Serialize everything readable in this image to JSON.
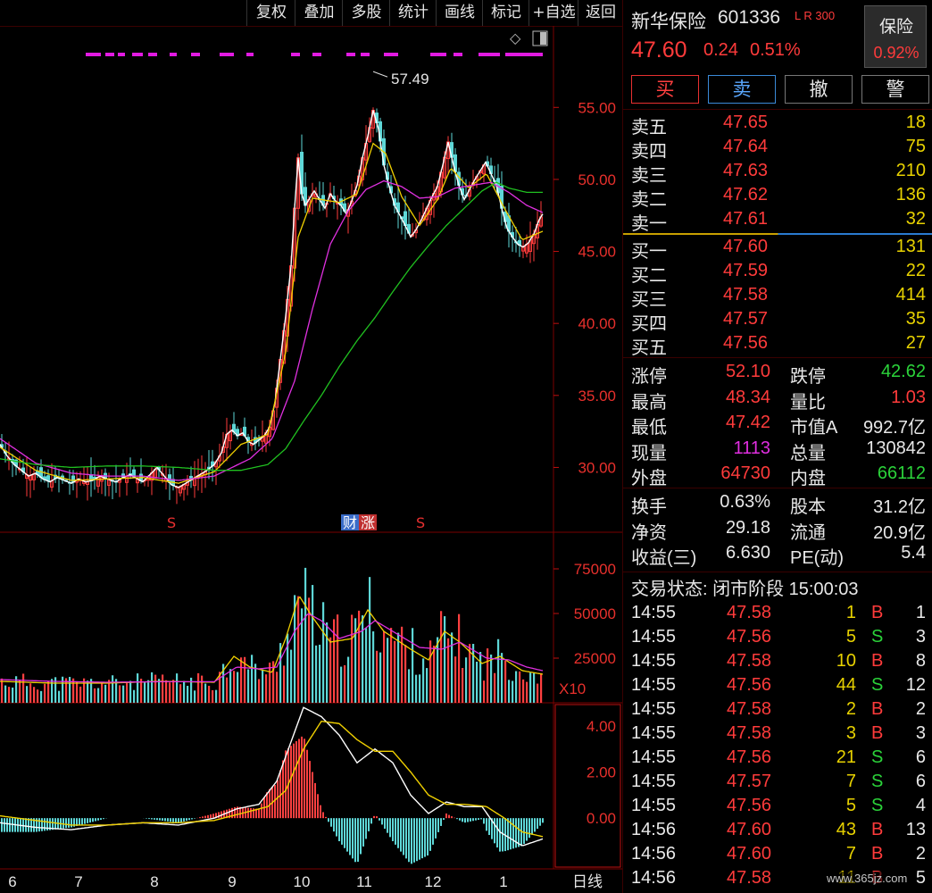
{
  "toolbar": {
    "buttons": [
      "复权",
      "叠加",
      "多股",
      "统计",
      "画线",
      "标记",
      "+自选",
      "返回"
    ]
  },
  "stock": {
    "name": "新华保险",
    "code": "601336",
    "tags": "L R 300",
    "price": "47.60",
    "change": "0.24",
    "change_pct": "0.51%",
    "sector": "保险",
    "sector_pct": "0.92%"
  },
  "actions": [
    "买",
    "卖",
    "撤",
    "警"
  ],
  "asks": [
    {
      "label": "卖五",
      "price": "47.65",
      "vol": "18"
    },
    {
      "label": "卖四",
      "price": "47.64",
      "vol": "75"
    },
    {
      "label": "卖三",
      "price": "47.63",
      "vol": "210"
    },
    {
      "label": "卖二",
      "price": "47.62",
      "vol": "136"
    },
    {
      "label": "卖一",
      "price": "47.61",
      "vol": "32"
    }
  ],
  "bids": [
    {
      "label": "买一",
      "price": "47.60",
      "vol": "131"
    },
    {
      "label": "买二",
      "price": "47.59",
      "vol": "22"
    },
    {
      "label": "买三",
      "price": "47.58",
      "vol": "414"
    },
    {
      "label": "买四",
      "price": "47.57",
      "vol": "35"
    },
    {
      "label": "买五",
      "price": "47.56",
      "vol": "27"
    }
  ],
  "stats": [
    {
      "l1": "涨停",
      "v1": "52.10",
      "c1": "red",
      "l2": "跌停",
      "v2": "42.62",
      "c2": "green"
    },
    {
      "l1": "最高",
      "v1": "48.34",
      "c1": "red",
      "l2": "量比",
      "v2": "1.03",
      "c2": "red"
    },
    {
      "l1": "最低",
      "v1": "47.42",
      "c1": "red",
      "l2": "市值A",
      "v2": "992.7亿",
      "c2": "white"
    },
    {
      "l1": "现量",
      "v1": "1113",
      "c1": "magenta",
      "l2": "总量",
      "v2": "130842",
      "c2": "white"
    },
    {
      "l1": "外盘",
      "v1": "64730",
      "c1": "red",
      "l2": "内盘",
      "v2": "66112",
      "c2": "green"
    }
  ],
  "fundamentals": [
    {
      "l1": "换手",
      "v1": "0.63%",
      "l2": "股本",
      "v2": "31.2亿"
    },
    {
      "l1": "净资",
      "v1": "29.18",
      "l2": "流通",
      "v2": "20.9亿"
    },
    {
      "l1": "收益(三)",
      "v1": "6.630",
      "l2": "PE(动)",
      "v2": "5.4"
    }
  ],
  "trade_status": "交易状态: 闭市阶段 15:00:03",
  "ticks": [
    {
      "t": "14:55",
      "p": "47.58",
      "v": "1",
      "s": "B",
      "n": "1"
    },
    {
      "t": "14:55",
      "p": "47.56",
      "v": "5",
      "s": "S",
      "n": "3"
    },
    {
      "t": "14:55",
      "p": "47.58",
      "v": "10",
      "s": "B",
      "n": "8"
    },
    {
      "t": "14:55",
      "p": "47.56",
      "v": "44",
      "s": "S",
      "n": "12"
    },
    {
      "t": "14:55",
      "p": "47.58",
      "v": "2",
      "s": "B",
      "n": "2"
    },
    {
      "t": "14:55",
      "p": "47.58",
      "v": "3",
      "s": "B",
      "n": "3"
    },
    {
      "t": "14:55",
      "p": "47.56",
      "v": "21",
      "s": "S",
      "n": "6"
    },
    {
      "t": "14:55",
      "p": "47.57",
      "v": "7",
      "s": "S",
      "n": "6"
    },
    {
      "t": "14:55",
      "p": "47.56",
      "v": "5",
      "s": "S",
      "n": "4"
    },
    {
      "t": "14:56",
      "p": "47.60",
      "v": "43",
      "s": "B",
      "n": "13"
    },
    {
      "t": "14:56",
      "p": "47.60",
      "v": "7",
      "s": "B",
      "n": "2"
    },
    {
      "t": "14:56",
      "p": "47.58",
      "v": "11",
      "s": "B",
      "n": "5"
    }
  ],
  "watermark": "www.365jz.com",
  "chart_data": {
    "type": "candlestick",
    "price_axis": {
      "ticks": [
        "55.00",
        "50.00",
        "45.00",
        "40.00",
        "35.00",
        "30.00"
      ],
      "range": [
        25.5,
        58.8
      ]
    },
    "high_annotation": "57.49",
    "markers": [
      "S",
      "财",
      "涨",
      "S"
    ],
    "volume_axis": {
      "ticks": [
        "75000",
        "50000",
        "25000"
      ],
      "unit": "X10",
      "range": [
        0,
        90000
      ]
    },
    "macd_axis": {
      "ticks": [
        "4.00",
        "2.00",
        "0.00"
      ],
      "range": [
        -2.2,
        5.0
      ]
    },
    "months": [
      "6",
      "7",
      "8",
      "9",
      "10",
      "11",
      "12",
      "1"
    ],
    "period": "日线",
    "price_path": [
      [
        0,
        31.6
      ],
      [
        8,
        30.8
      ],
      [
        16,
        30.2
      ],
      [
        24,
        29.8
      ],
      [
        32,
        29.4
      ],
      [
        40,
        29.6
      ],
      [
        48,
        29.2
      ],
      [
        56,
        29.0
      ],
      [
        64,
        29.3
      ],
      [
        72,
        29.1
      ],
      [
        80,
        28.9
      ],
      [
        88,
        29.2
      ],
      [
        96,
        29.0
      ],
      [
        104,
        29.1
      ],
      [
        112,
        29.4
      ],
      [
        120,
        29.2
      ],
      [
        130,
        29.0
      ],
      [
        138,
        29.3
      ],
      [
        146,
        29.5
      ],
      [
        154,
        29.2
      ],
      [
        160,
        29.0
      ],
      [
        168,
        29.5
      ],
      [
        176,
        30.0
      ],
      [
        184,
        29.4
      ],
      [
        192,
        28.8
      ],
      [
        200,
        28.6
      ],
      [
        208,
        28.9
      ],
      [
        216,
        29.2
      ],
      [
        224,
        29.5
      ],
      [
        232,
        29.8
      ],
      [
        240,
        30.2
      ],
      [
        248,
        31.0
      ],
      [
        254,
        32.3
      ],
      [
        260,
        32.6
      ],
      [
        266,
        32.2
      ],
      [
        272,
        32.4
      ],
      [
        278,
        31.8
      ],
      [
        284,
        31.6
      ],
      [
        290,
        31.9
      ],
      [
        296,
        32.2
      ],
      [
        302,
        32.8
      ],
      [
        308,
        34.5
      ],
      [
        314,
        37.5
      ],
      [
        320,
        40.5
      ],
      [
        326,
        44.0
      ],
      [
        330,
        48.0
      ],
      [
        334,
        51.5
      ],
      [
        338,
        49.0
      ],
      [
        342,
        48.2
      ],
      [
        346,
        48.6
      ],
      [
        352,
        49.2
      ],
      [
        358,
        48.6
      ],
      [
        364,
        48.0
      ],
      [
        370,
        49.0
      ],
      [
        376,
        48.5
      ],
      [
        382,
        48.2
      ],
      [
        388,
        47.6
      ],
      [
        394,
        48.5
      ],
      [
        400,
        49.6
      ],
      [
        406,
        51.5
      ],
      [
        412,
        53.0
      ],
      [
        418,
        54.8
      ],
      [
        424,
        53.5
      ],
      [
        430,
        51.0
      ],
      [
        436,
        49.5
      ],
      [
        442,
        48.2
      ],
      [
        448,
        47.5
      ],
      [
        454,
        46.8
      ],
      [
        460,
        46.0
      ],
      [
        466,
        46.5
      ],
      [
        472,
        47.2
      ],
      [
        478,
        48.0
      ],
      [
        484,
        48.8
      ],
      [
        490,
        49.5
      ],
      [
        496,
        51.0
      ],
      [
        502,
        52.6
      ],
      [
        508,
        51.0
      ],
      [
        514,
        49.6
      ],
      [
        520,
        48.6
      ],
      [
        526,
        49.3
      ],
      [
        532,
        50.0
      ],
      [
        538,
        50.6
      ],
      [
        544,
        51.2
      ],
      [
        550,
        50.4
      ],
      [
        556,
        49.6
      ],
      [
        562,
        48.0
      ],
      [
        568,
        46.6
      ],
      [
        574,
        46.0
      ],
      [
        580,
        45.5
      ],
      [
        586,
        45.3
      ],
      [
        592,
        45.6
      ],
      [
        598,
        46.2
      ],
      [
        604,
        47.2
      ],
      [
        608,
        47.6
      ]
    ],
    "ma_short": [
      [
        0,
        31.4
      ],
      [
        40,
        29.8
      ],
      [
        80,
        29.1
      ],
      [
        120,
        29.2
      ],
      [
        160,
        29.3
      ],
      [
        200,
        28.9
      ],
      [
        240,
        29.7
      ],
      [
        270,
        31.6
      ],
      [
        300,
        32.3
      ],
      [
        320,
        38.0
      ],
      [
        334,
        46.0
      ],
      [
        350,
        48.7
      ],
      [
        380,
        48.4
      ],
      [
        400,
        49.0
      ],
      [
        418,
        52.5
      ],
      [
        432,
        51.8
      ],
      [
        450,
        48.8
      ],
      [
        470,
        46.8
      ],
      [
        490,
        48.6
      ],
      [
        505,
        50.8
      ],
      [
        525,
        49.4
      ],
      [
        545,
        50.4
      ],
      [
        565,
        48.0
      ],
      [
        585,
        45.8
      ],
      [
        608,
        46.4
      ]
    ],
    "ma_mid": [
      [
        0,
        32.0
      ],
      [
        40,
        30.3
      ],
      [
        80,
        29.6
      ],
      [
        120,
        29.4
      ],
      [
        160,
        29.4
      ],
      [
        200,
        29.1
      ],
      [
        240,
        29.4
      ],
      [
        280,
        30.6
      ],
      [
        305,
        32.0
      ],
      [
        330,
        36.0
      ],
      [
        350,
        41.0
      ],
      [
        370,
        45.5
      ],
      [
        390,
        47.8
      ],
      [
        410,
        49.3
      ],
      [
        430,
        49.9
      ],
      [
        450,
        49.5
      ],
      [
        470,
        48.7
      ],
      [
        490,
        48.8
      ],
      [
        510,
        49.4
      ],
      [
        530,
        49.6
      ],
      [
        550,
        49.8
      ],
      [
        570,
        49.1
      ],
      [
        590,
        48.2
      ],
      [
        608,
        47.7
      ]
    ],
    "ma_long": [
      [
        0,
        30.6
      ],
      [
        40,
        30.2
      ],
      [
        80,
        30.0
      ],
      [
        120,
        30.1
      ],
      [
        160,
        30.1
      ],
      [
        200,
        30.0
      ],
      [
        240,
        29.8
      ],
      [
        270,
        29.8
      ],
      [
        300,
        30.2
      ],
      [
        320,
        31.3
      ],
      [
        340,
        33.2
      ],
      [
        360,
        35.0
      ],
      [
        380,
        37.0
      ],
      [
        400,
        38.8
      ],
      [
        420,
        40.4
      ],
      [
        440,
        42.2
      ],
      [
        460,
        43.9
      ],
      [
        480,
        45.4
      ],
      [
        500,
        46.8
      ],
      [
        520,
        48.0
      ],
      [
        540,
        49.2
      ],
      [
        556,
        49.8
      ],
      [
        570,
        49.4
      ],
      [
        590,
        49.1
      ],
      [
        608,
        49.1
      ]
    ],
    "volume_ma_a": [
      [
        0,
        12000
      ],
      [
        60,
        11000
      ],
      [
        120,
        11000
      ],
      [
        180,
        12000
      ],
      [
        240,
        11500
      ],
      [
        262,
        26000
      ],
      [
        280,
        20000
      ],
      [
        305,
        17000
      ],
      [
        320,
        36000
      ],
      [
        335,
        60000
      ],
      [
        350,
        48000
      ],
      [
        370,
        34000
      ],
      [
        395,
        36000
      ],
      [
        412,
        52000
      ],
      [
        430,
        40000
      ],
      [
        460,
        30000
      ],
      [
        480,
        24000
      ],
      [
        498,
        40000
      ],
      [
        515,
        34000
      ],
      [
        540,
        22000
      ],
      [
        560,
        26000
      ],
      [
        585,
        18000
      ],
      [
        608,
        16000
      ]
    ],
    "volume_ma_b": [
      [
        0,
        13000
      ],
      [
        60,
        12000
      ],
      [
        120,
        11500
      ],
      [
        180,
        11800
      ],
      [
        240,
        11800
      ],
      [
        265,
        20000
      ],
      [
        290,
        19000
      ],
      [
        310,
        20000
      ],
      [
        330,
        40000
      ],
      [
        345,
        50000
      ],
      [
        360,
        46000
      ],
      [
        380,
        36000
      ],
      [
        405,
        40000
      ],
      [
        420,
        46000
      ],
      [
        440,
        40000
      ],
      [
        470,
        31000
      ],
      [
        495,
        30000
      ],
      [
        515,
        34000
      ],
      [
        545,
        25000
      ],
      [
        570,
        24000
      ],
      [
        590,
        20000
      ],
      [
        608,
        18000
      ]
    ],
    "dif": [
      [
        0,
        -0.2
      ],
      [
        40,
        -0.4
      ],
      [
        80,
        -0.5
      ],
      [
        120,
        -0.3
      ],
      [
        160,
        -0.2
      ],
      [
        200,
        -0.3
      ],
      [
        240,
        0.0
      ],
      [
        265,
        0.4
      ],
      [
        290,
        0.6
      ],
      [
        310,
        1.6
      ],
      [
        325,
        3.2
      ],
      [
        340,
        4.8
      ],
      [
        360,
        4.4
      ],
      [
        380,
        3.6
      ],
      [
        400,
        2.4
      ],
      [
        420,
        3.0
      ],
      [
        440,
        2.4
      ],
      [
        460,
        1.0
      ],
      [
        480,
        0.2
      ],
      [
        500,
        0.7
      ],
      [
        520,
        0.5
      ],
      [
        540,
        0.5
      ],
      [
        560,
        -0.6
      ],
      [
        585,
        -1.2
      ],
      [
        608,
        -0.9
      ]
    ],
    "dea": [
      [
        0,
        0.1
      ],
      [
        40,
        -0.1
      ],
      [
        80,
        -0.3
      ],
      [
        120,
        -0.3
      ],
      [
        160,
        -0.2
      ],
      [
        200,
        -0.2
      ],
      [
        240,
        -0.1
      ],
      [
        270,
        0.2
      ],
      [
        300,
        0.5
      ],
      [
        320,
        1.2
      ],
      [
        340,
        3.0
      ],
      [
        360,
        4.2
      ],
      [
        380,
        4.1
      ],
      [
        400,
        3.4
      ],
      [
        420,
        2.9
      ],
      [
        440,
        2.9
      ],
      [
        460,
        2.0
      ],
      [
        480,
        1.0
      ],
      [
        500,
        0.6
      ],
      [
        520,
        0.6
      ],
      [
        545,
        0.5
      ],
      [
        565,
        0.0
      ],
      [
        585,
        -0.6
      ],
      [
        608,
        -0.8
      ]
    ]
  }
}
